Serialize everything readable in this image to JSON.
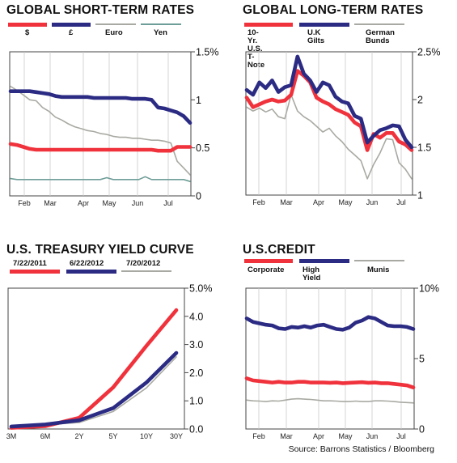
{
  "colors": {
    "red": "#f0323c",
    "navy": "#2b2b84",
    "gray": "#a9a9a3",
    "teal": "#6e9e98",
    "grid": "#c9c9c9",
    "frame": "#444444"
  },
  "source": "Source: Barrons Statistics / Bloomberg",
  "chart_data": [
    {
      "id": "short",
      "type": "line",
      "title": "GLOBAL SHORT-TERM RATES",
      "y_ticks": [
        {
          "v": 0,
          "label": "0"
        },
        {
          "v": 0.5,
          "label": "0.5"
        },
        {
          "v": 1,
          "label": "1"
        },
        {
          "v": 1.5,
          "label": "1.5%"
        }
      ],
      "ylim": [
        0,
        1.5
      ],
      "x_ticks": [
        "Feb",
        "Mar",
        "Apr",
        "May",
        "Jun",
        "Jul"
      ],
      "grid": "vertical",
      "series": [
        {
          "name": "$",
          "color": "red",
          "y": [
            0.54,
            0.53,
            0.51,
            0.49,
            0.48,
            0.48,
            0.48,
            0.48,
            0.48,
            0.48,
            0.48,
            0.48,
            0.48,
            0.48,
            0.48,
            0.48,
            0.48,
            0.48,
            0.48,
            0.48,
            0.48,
            0.48,
            0.48,
            0.47,
            0.47,
            0.47,
            0.51,
            0.51,
            0.51
          ]
        },
        {
          "name": "£",
          "color": "navy",
          "y": [
            1.09,
            1.09,
            1.09,
            1.09,
            1.08,
            1.07,
            1.06,
            1.04,
            1.03,
            1.03,
            1.03,
            1.03,
            1.03,
            1.02,
            1.02,
            1.02,
            1.02,
            1.02,
            1.02,
            1.01,
            1.01,
            1.01,
            1.0,
            0.92,
            0.91,
            0.89,
            0.87,
            0.83,
            0.76
          ]
        },
        {
          "name": "Euro",
          "color": "gray",
          "y": [
            1.14,
            1.1,
            1.05,
            1.0,
            0.99,
            0.92,
            0.88,
            0.82,
            0.79,
            0.75,
            0.72,
            0.7,
            0.68,
            0.67,
            0.65,
            0.64,
            0.62,
            0.61,
            0.61,
            0.6,
            0.6,
            0.59,
            0.58,
            0.58,
            0.57,
            0.55,
            0.36,
            0.29,
            0.22
          ]
        },
        {
          "name": "Yen",
          "color": "teal",
          "y": [
            0.18,
            0.17,
            0.17,
            0.17,
            0.17,
            0.17,
            0.17,
            0.17,
            0.17,
            0.17,
            0.17,
            0.17,
            0.17,
            0.17,
            0.17,
            0.19,
            0.17,
            0.17,
            0.17,
            0.17,
            0.17,
            0.2,
            0.17,
            0.17,
            0.17,
            0.17,
            0.17,
            0.17,
            0.15
          ]
        }
      ]
    },
    {
      "id": "long",
      "type": "line",
      "title": "GLOBAL LONG-TERM RATES",
      "y_ticks": [
        {
          "v": 1,
          "label": "1"
        },
        {
          "v": 1.5,
          "label": "1.5"
        },
        {
          "v": 2,
          "label": "2"
        },
        {
          "v": 2.5,
          "label": "2.5%"
        }
      ],
      "ylim": [
        1,
        2.5
      ],
      "x_ticks": [
        "Feb",
        "Mar",
        "Apr",
        "May",
        "Jun",
        "Jul"
      ],
      "grid": "vertical",
      "series": [
        {
          "name": "10-Yr. U.S.\nT-Note",
          "color": "red",
          "y": [
            2.02,
            1.92,
            1.95,
            1.98,
            2.0,
            1.98,
            1.99,
            2.05,
            2.3,
            2.25,
            2.18,
            2.02,
            1.98,
            1.95,
            1.9,
            1.87,
            1.84,
            1.76,
            1.72,
            1.47,
            1.64,
            1.6,
            1.65,
            1.65,
            1.56,
            1.53,
            1.47
          ]
        },
        {
          "name": "U.K Gilts",
          "color": "navy",
          "y": [
            2.1,
            2.05,
            2.18,
            2.12,
            2.2,
            2.08,
            2.13,
            2.15,
            2.45,
            2.27,
            2.2,
            2.08,
            2.18,
            2.15,
            2.03,
            1.98,
            1.96,
            1.83,
            1.8,
            1.55,
            1.62,
            1.68,
            1.7,
            1.73,
            1.72,
            1.58,
            1.5
          ]
        },
        {
          "name": "German\nBunds",
          "color": "gray",
          "y": [
            1.92,
            1.88,
            1.91,
            1.87,
            1.9,
            1.82,
            1.8,
            2.05,
            1.88,
            1.82,
            1.78,
            1.72,
            1.66,
            1.7,
            1.62,
            1.56,
            1.48,
            1.42,
            1.36,
            1.17,
            1.32,
            1.44,
            1.59,
            1.58,
            1.34,
            1.27,
            1.17
          ]
        }
      ]
    },
    {
      "id": "curve",
      "type": "line",
      "title": "U.S. TREASURY YIELD CURVE",
      "y_ticks": [
        {
          "v": 0,
          "label": "0.0"
        },
        {
          "v": 1,
          "label": "1.0"
        },
        {
          "v": 2,
          "label": "2.0"
        },
        {
          "v": 3,
          "label": "3.0"
        },
        {
          "v": 4,
          "label": "4.0"
        },
        {
          "v": 5,
          "label": "5.0%"
        }
      ],
      "ylim": [
        0,
        5
      ],
      "x_ticks": [
        "3M",
        "6M",
        "2Y",
        "5Y",
        "10Y",
        "30Y"
      ],
      "grid": "none",
      "series": [
        {
          "name": "7/22/2011",
          "color": "red",
          "y": [
            0.04,
            0.1,
            0.4,
            1.48,
            2.95,
            4.22
          ]
        },
        {
          "name": "6/22/2012",
          "color": "navy",
          "y": [
            0.09,
            0.16,
            0.31,
            0.74,
            1.65,
            2.7
          ]
        },
        {
          "name": "7/20/2012",
          "color": "gray",
          "y": [
            0.1,
            0.15,
            0.23,
            0.62,
            1.46,
            2.56
          ]
        }
      ]
    },
    {
      "id": "credit",
      "type": "line",
      "title": "U.S.CREDIT",
      "y_ticks": [
        {
          "v": 0,
          "label": "0"
        },
        {
          "v": 5,
          "label": "5"
        },
        {
          "v": 10,
          "label": "10%"
        }
      ],
      "ylim": [
        0,
        10
      ],
      "x_ticks": [
        "Feb",
        "Mar",
        "Apr",
        "May",
        "Jun",
        "Jul"
      ],
      "grid": "vertical",
      "series": [
        {
          "name": "Corporate",
          "color": "red",
          "y": [
            3.6,
            3.45,
            3.4,
            3.35,
            3.3,
            3.35,
            3.3,
            3.3,
            3.35,
            3.35,
            3.3,
            3.3,
            3.3,
            3.28,
            3.3,
            3.25,
            3.28,
            3.3,
            3.32,
            3.28,
            3.3,
            3.25,
            3.25,
            3.2,
            3.15,
            3.1,
            2.95
          ]
        },
        {
          "name": "High Yield",
          "color": "navy",
          "y": [
            7.85,
            7.6,
            7.5,
            7.4,
            7.35,
            7.15,
            7.1,
            7.25,
            7.2,
            7.3,
            7.2,
            7.35,
            7.4,
            7.25,
            7.1,
            7.05,
            7.2,
            7.55,
            7.7,
            7.95,
            7.85,
            7.6,
            7.35,
            7.3,
            7.3,
            7.25,
            7.1
          ]
        },
        {
          "name": "Munis",
          "color": "gray",
          "y": [
            2.05,
            2.0,
            1.98,
            1.95,
            2.0,
            1.98,
            2.05,
            2.12,
            2.15,
            2.12,
            2.1,
            2.05,
            2.0,
            2.0,
            1.98,
            1.95,
            1.95,
            1.98,
            1.95,
            1.95,
            2.0,
            2.0,
            1.98,
            1.95,
            1.9,
            1.88,
            1.85
          ]
        }
      ]
    }
  ]
}
